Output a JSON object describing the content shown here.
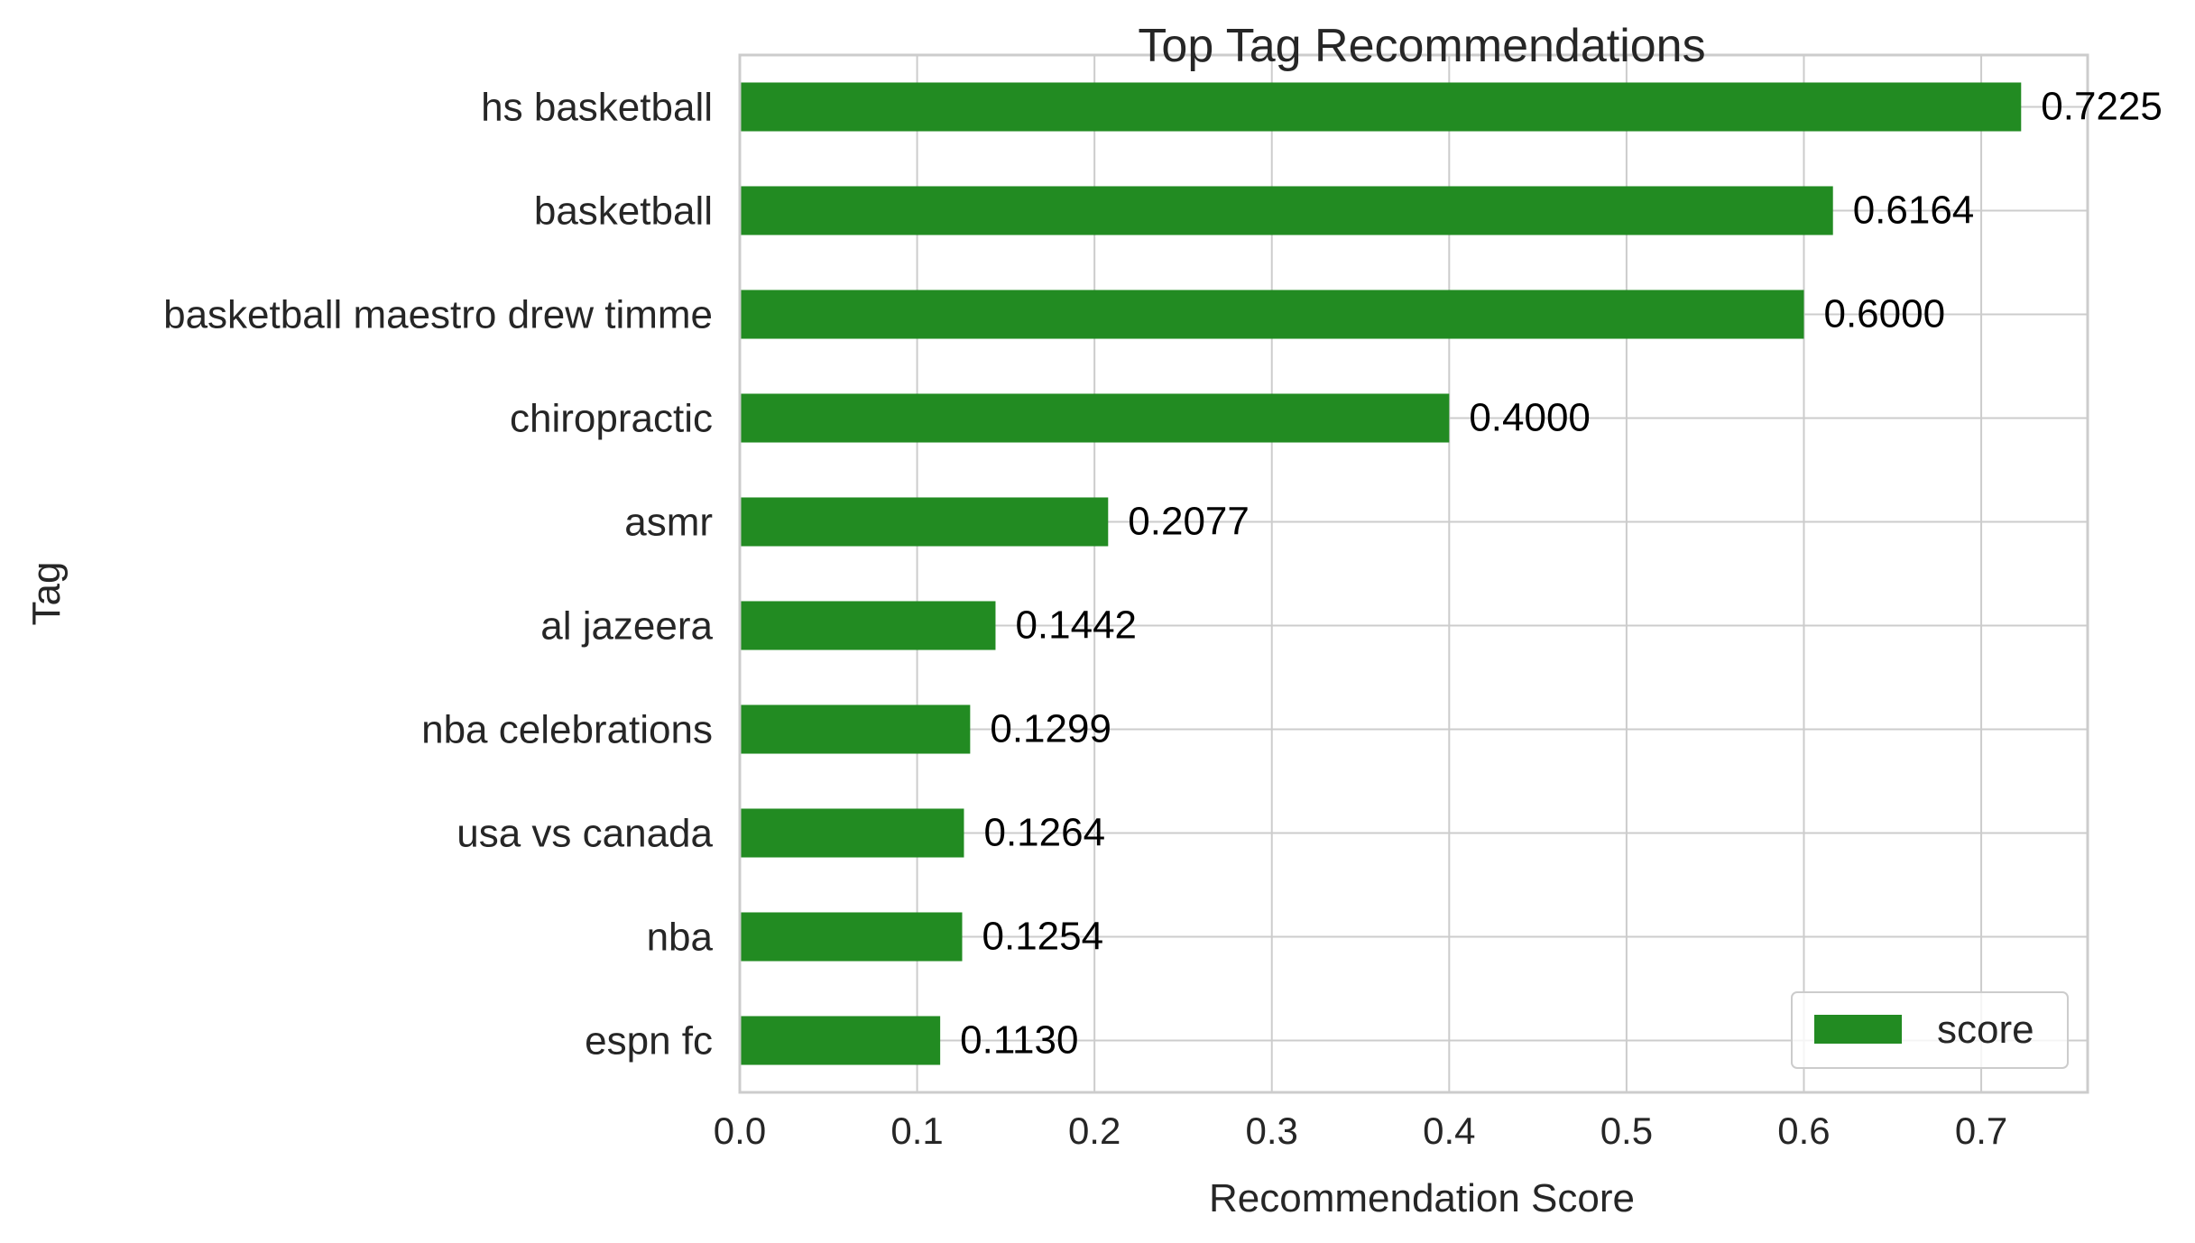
{
  "chart_data": {
    "type": "bar",
    "orientation": "horizontal",
    "title": "Top Tag Recommendations",
    "xlabel": "Recommendation Score",
    "ylabel": "Tag",
    "xlim": [
      0.0,
      0.76
    ],
    "xticks": [
      "0.0",
      "0.1",
      "0.2",
      "0.3",
      "0.4",
      "0.5",
      "0.6",
      "0.7"
    ],
    "grid": true,
    "legend_position": "lower-right",
    "series": [
      {
        "name": "score",
        "color": "#228b22",
        "values": [
          0.7225,
          0.6164,
          0.6,
          0.4,
          0.2077,
          0.1442,
          0.1299,
          0.1264,
          0.1254,
          0.113
        ]
      }
    ],
    "categories": [
      "hs basketball",
      "basketball",
      "basketball maestro drew timme",
      "chiropractic",
      "asmr",
      "al jazeera",
      "nba celebrations",
      "usa vs canada",
      "nba",
      "espn fc"
    ],
    "data_labels": [
      "0.7225",
      "0.6164",
      "0.6000",
      "0.4000",
      "0.2077",
      "0.1442",
      "0.1299",
      "0.1264",
      "0.1254",
      "0.1130"
    ]
  },
  "colors": {
    "bar": "#228b22",
    "grid": "#cccccc",
    "axis_text": "#262626",
    "label_text": "#000000"
  }
}
